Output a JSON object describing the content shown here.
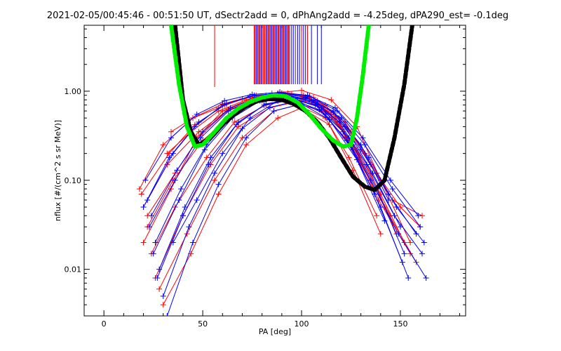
{
  "chart_data": {
    "type": "line",
    "title": "2021-02-05/00:45:46 - 00:51:50 UT, dSectr2add = 0, dPhAng2add = -4.25deg, dPA290_est=  -0.1deg",
    "xlabel": "PA [deg]",
    "ylabel": "nflux [#/(cm^2 s sr MeV)]",
    "xlim": [
      -10,
      183
    ],
    "ylim": [
      0.003,
      5.5
    ],
    "yscale": "log",
    "x_ticks": [
      0,
      50,
      100,
      150
    ],
    "x_tick_labels": [
      "0",
      "50",
      "100",
      "150"
    ],
    "y_ticks": [
      0.01,
      0.1,
      1.0
    ],
    "y_tick_labels": [
      "0.01",
      "0.10",
      "1.00"
    ],
    "grid": false,
    "colors": {
      "red": "#ff0000",
      "blue": "#0000ff",
      "black": "#000000",
      "green": "#00ee00"
    },
    "series": [
      {
        "color": "#ff0000",
        "style": "line+plus",
        "profiles": [
          {
            "x": [
              18,
              30,
              45,
              60,
              75,
              88,
              100,
              112,
              125,
              138,
              150,
              160
            ],
            "y": [
              0.08,
              0.25,
              0.5,
              0.72,
              0.88,
              0.95,
              0.9,
              0.7,
              0.35,
              0.12,
              0.05,
              0.03
            ]
          },
          {
            "x": [
              20,
              32,
              48,
              62,
              78,
              90,
              102,
              115,
              128,
              140,
              152
            ],
            "y": [
              0.05,
              0.15,
              0.35,
              0.6,
              0.8,
              0.88,
              0.82,
              0.55,
              0.22,
              0.07,
              0.02
            ]
          },
          {
            "x": [
              22,
              35,
              50,
              65,
              80,
              92,
              105,
              118,
              130,
              145
            ],
            "y": [
              0.03,
              0.1,
              0.28,
              0.55,
              0.78,
              0.85,
              0.75,
              0.45,
              0.15,
              0.04
            ]
          },
          {
            "x": [
              24,
              36,
              52,
              66,
              82,
              95,
              108,
              120,
              135,
              148
            ],
            "y": [
              0.015,
              0.05,
              0.18,
              0.45,
              0.7,
              0.8,
              0.7,
              0.4,
              0.12,
              0.025
            ]
          },
          {
            "x": [
              20,
              34,
              47,
              60,
              76,
              89,
              101,
              113,
              126,
              139,
              155
            ],
            "y": [
              0.02,
              0.08,
              0.3,
              0.6,
              0.85,
              0.98,
              0.9,
              0.6,
              0.25,
              0.06,
              0.015
            ]
          },
          {
            "x": [
              26,
              40,
              54,
              68,
              84,
              96,
              110,
              122,
              136
            ],
            "y": [
              0.008,
              0.04,
              0.15,
              0.4,
              0.65,
              0.75,
              0.6,
              0.3,
              0.08
            ]
          },
          {
            "x": [
              28,
              42,
              56,
              70,
              86,
              98,
              112,
              124,
              138
            ],
            "y": [
              0.006,
              0.025,
              0.1,
              0.3,
              0.6,
              0.7,
              0.5,
              0.18,
              0.04
            ]
          },
          {
            "x": [
              30,
              44,
              58,
              72,
              88,
              100,
              114,
              126,
              140
            ],
            "y": [
              0.004,
              0.015,
              0.07,
              0.25,
              0.5,
              0.65,
              0.42,
              0.13,
              0.025
            ]
          },
          {
            "x": [
              32,
              44,
              58,
              72,
              85,
              100,
              115,
              128,
              140,
              155
            ],
            "y": [
              0.2,
              0.35,
              0.6,
              0.8,
              0.95,
              1.02,
              0.8,
              0.4,
              0.1,
              0.02
            ]
          },
          {
            "x": [
              22,
              36,
              49,
              63,
              79,
              91,
              104,
              117,
              129,
              142,
              158
            ],
            "y": [
              0.04,
              0.12,
              0.32,
              0.62,
              0.85,
              0.93,
              0.85,
              0.52,
              0.18,
              0.05,
              0.012
            ]
          },
          {
            "x": [
              34,
              45,
              58,
              70,
              82,
              95,
              108,
              122,
              135
            ],
            "y": [
              0.35,
              0.5,
              0.65,
              0.82,
              0.9,
              0.92,
              0.78,
              0.45,
              0.15
            ]
          },
          {
            "x": [
              19,
              33,
              46,
              61,
              77,
              93,
              106,
              119,
              132,
              146,
              161
            ],
            "y": [
              0.07,
              0.2,
              0.42,
              0.7,
              0.9,
              0.95,
              0.85,
              0.5,
              0.2,
              0.06,
              0.04
            ]
          }
        ]
      },
      {
        "color": "#0000ff",
        "style": "line+plus",
        "profiles": [
          {
            "x": [
              22,
              35,
              48,
              62,
              76,
              90,
              104,
              118,
              132,
              146,
              160
            ],
            "y": [
              0.06,
              0.2,
              0.45,
              0.72,
              0.9,
              0.95,
              0.88,
              0.6,
              0.25,
              0.08,
              0.03
            ]
          },
          {
            "x": [
              24,
              37,
              50,
              64,
              78,
              92,
              106,
              120,
              134,
              148,
              162
            ],
            "y": [
              0.04,
              0.13,
              0.35,
              0.65,
              0.85,
              0.9,
              0.8,
              0.5,
              0.18,
              0.05,
              0.02
            ]
          },
          {
            "x": [
              26,
              39,
              52,
              66,
              80,
              94,
              108,
              122,
              136,
              150
            ],
            "y": [
              0.02,
              0.08,
              0.25,
              0.55,
              0.8,
              0.88,
              0.72,
              0.4,
              0.12,
              0.03
            ]
          },
          {
            "x": [
              28,
              41,
              54,
              68,
              82,
              96,
              110,
              124,
              138,
              152
            ],
            "y": [
              0.01,
              0.05,
              0.18,
              0.45,
              0.72,
              0.82,
              0.65,
              0.3,
              0.08,
              0.015
            ]
          },
          {
            "x": [
              30,
              43,
              56,
              70,
              84,
              98,
              112,
              126,
              140,
              154
            ],
            "y": [
              0.005,
              0.03,
              0.12,
              0.38,
              0.66,
              0.78,
              0.55,
              0.22,
              0.05,
              0.008
            ]
          },
          {
            "x": [
              32,
              45,
              58,
              72,
              86,
              100,
              114,
              128,
              142
            ],
            "y": [
              0.003,
              0.02,
              0.09,
              0.3,
              0.6,
              0.72,
              0.48,
              0.17,
              0.035
            ]
          },
          {
            "x": [
              21,
              34,
              47,
              61,
              75,
              89,
              103,
              117,
              131,
              145,
              159
            ],
            "y": [
              0.1,
              0.3,
              0.55,
              0.78,
              0.92,
              0.97,
              0.9,
              0.65,
              0.3,
              0.1,
              0.04
            ]
          },
          {
            "x": [
              23,
              36,
              49,
              63,
              77,
              91,
              105,
              119,
              133,
              147,
              161
            ],
            "y": [
              0.03,
              0.1,
              0.3,
              0.6,
              0.83,
              0.9,
              0.78,
              0.45,
              0.15,
              0.04,
              0.015
            ]
          },
          {
            "x": [
              25,
              38,
              51,
              65,
              79,
              93,
              107,
              121,
              135,
              149,
              163
            ],
            "y": [
              0.015,
              0.06,
              0.22,
              0.5,
              0.78,
              0.86,
              0.7,
              0.35,
              0.1,
              0.025,
              0.008
            ]
          },
          {
            "x": [
              35,
              47,
              60,
              74,
              88,
              102,
              116,
              130,
              144
            ],
            "y": [
              0.02,
              0.06,
              0.2,
              0.5,
              0.78,
              0.85,
              0.6,
              0.25,
              0.06
            ]
          },
          {
            "x": [
              20,
              33,
              46,
              60,
              74,
              88,
              102,
              116,
              130,
              144,
              158
            ],
            "y": [
              0.05,
              0.18,
              0.4,
              0.7,
              0.88,
              0.94,
              0.86,
              0.58,
              0.22,
              0.07,
              0.025
            ]
          },
          {
            "x": [
              27,
              40,
              53,
              67,
              81,
              95,
              109,
              123,
              137,
              151
            ],
            "y": [
              0.008,
              0.04,
              0.15,
              0.42,
              0.7,
              0.8,
              0.62,
              0.28,
              0.07,
              0.012
            ]
          }
        ]
      },
      {
        "name": "",
        "color": "#000000",
        "style": "thick-dashed",
        "x": [
          36,
          40,
          44,
          48,
          54,
          60,
          66,
          72,
          78,
          84,
          90,
          96,
          102,
          108,
          114,
          120,
          126,
          132,
          137,
          142,
          147,
          152,
          156
        ],
        "y": [
          5.5,
          0.8,
          0.35,
          0.25,
          0.3,
          0.42,
          0.55,
          0.68,
          0.78,
          0.82,
          0.8,
          0.72,
          0.6,
          0.45,
          0.3,
          0.18,
          0.11,
          0.085,
          0.078,
          0.1,
          0.3,
          1.2,
          5.5
        ]
      },
      {
        "name": "",
        "color": "#00ee00",
        "style": "thick-dashed",
        "x": [
          34,
          38,
          42,
          46,
          50,
          56,
          62,
          68,
          74,
          80,
          86,
          92,
          98,
          104,
          110,
          116,
          121,
          125,
          128,
          131,
          134
        ],
        "y": [
          5.5,
          1.2,
          0.4,
          0.24,
          0.25,
          0.35,
          0.5,
          0.64,
          0.76,
          0.85,
          0.9,
          0.88,
          0.75,
          0.55,
          0.38,
          0.28,
          0.24,
          0.25,
          0.5,
          1.5,
          5.5
        ]
      }
    ],
    "top_ticks": {
      "red": [
        56,
        76,
        77,
        78,
        79,
        80,
        80.5,
        81,
        81.5,
        82,
        83,
        84,
        85,
        86,
        87,
        88,
        89,
        90,
        91,
        92,
        93,
        94,
        95,
        97,
        100,
        103
      ],
      "blue": [
        76.5,
        77.5,
        78.5,
        79.5,
        82.5,
        83.5,
        84.5,
        85.5,
        86.5,
        87.5,
        88.5,
        89.5,
        90.5,
        91.5,
        92.5,
        93.5,
        95,
        96,
        98,
        99,
        101,
        102,
        105,
        108,
        110
      ]
    }
  }
}
